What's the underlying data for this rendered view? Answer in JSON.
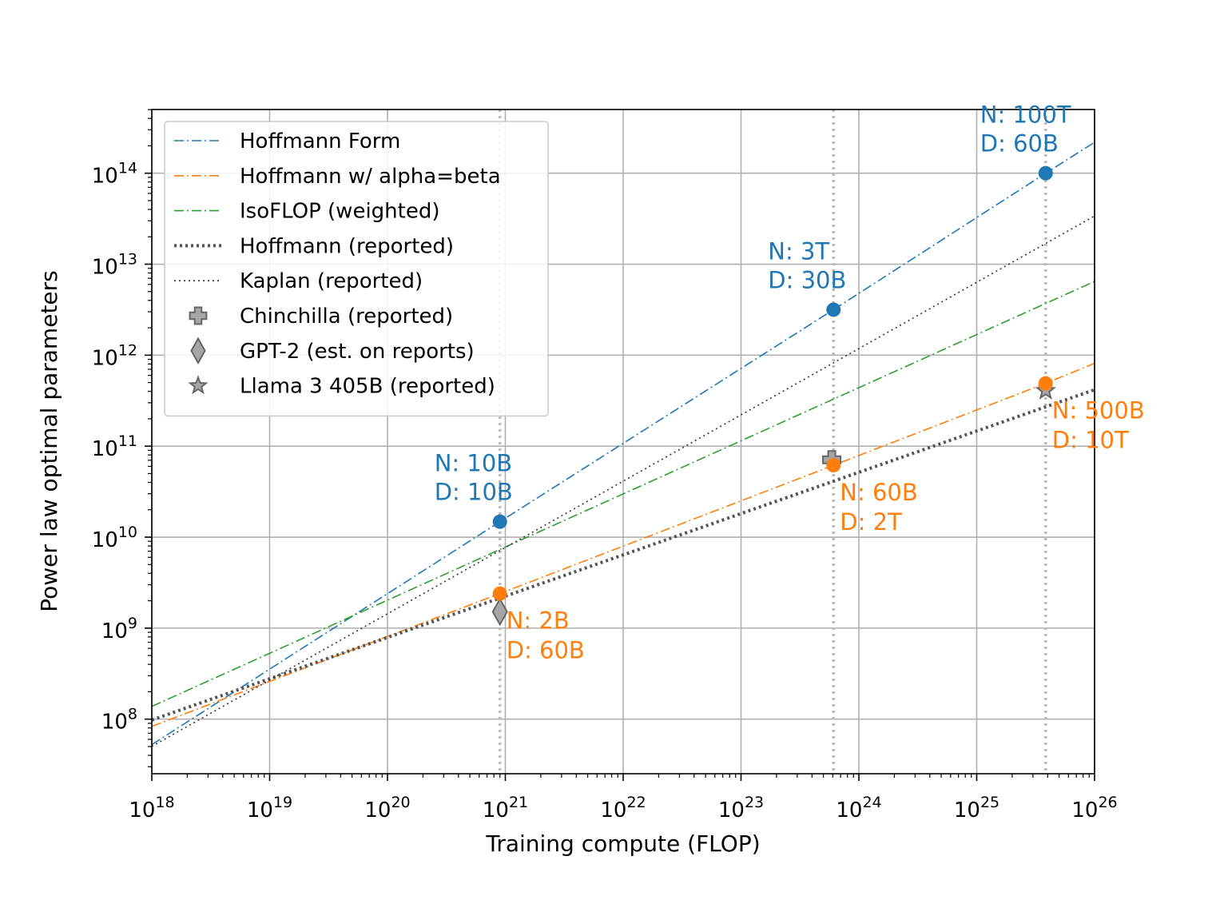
{
  "chart_data": {
    "type": "line",
    "xlabel": "Training compute (FLOP)",
    "ylabel": "Power law optimal parameters",
    "xscale": "log",
    "yscale": "log",
    "xlim_exp": [
      18,
      26
    ],
    "ylim_exp": [
      7.4,
      14.7
    ],
    "x_ticks": [
      {
        "base": "10",
        "exp": "18",
        "e": 18
      },
      {
        "base": "10",
        "exp": "19",
        "e": 19
      },
      {
        "base": "10",
        "exp": "20",
        "e": 20
      },
      {
        "base": "10",
        "exp": "21",
        "e": 21
      },
      {
        "base": "10",
        "exp": "22",
        "e": 22
      },
      {
        "base": "10",
        "exp": "23",
        "e": 23
      },
      {
        "base": "10",
        "exp": "24",
        "e": 24
      },
      {
        "base": "10",
        "exp": "25",
        "e": 25
      },
      {
        "base": "10",
        "exp": "26",
        "e": 26
      }
    ],
    "y_ticks": [
      {
        "base": "10",
        "exp": "8",
        "e": 8
      },
      {
        "base": "10",
        "exp": "9",
        "e": 9
      },
      {
        "base": "10",
        "exp": "10",
        "e": 10
      },
      {
        "base": "10",
        "exp": "11",
        "e": 11
      },
      {
        "base": "10",
        "exp": "12",
        "e": 12
      },
      {
        "base": "10",
        "exp": "13",
        "e": 13
      },
      {
        "base": "10",
        "exp": "14",
        "e": 14
      }
    ],
    "grid": true,
    "legend_position": "top-left",
    "vlines_log_x": [
      20.954,
      23.785,
      25.585
    ],
    "series": [
      {
        "name": "Hoffmann Form",
        "color": "#1f77b4",
        "style": "dashdot",
        "width": 1.6,
        "points_log": [
          [
            18,
            7.72
          ],
          [
            20.954,
            10.17
          ],
          [
            23.785,
            12.5
          ],
          [
            25.585,
            14.0
          ],
          [
            26,
            14.34
          ]
        ]
      },
      {
        "name": "Hoffmann w/ alpha=beta",
        "color": "#ff7f0e",
        "style": "dashdot",
        "width": 1.6,
        "points_log": [
          [
            18,
            7.92
          ],
          [
            20.954,
            9.38
          ],
          [
            23.785,
            10.79
          ],
          [
            25.585,
            11.69
          ],
          [
            26,
            11.91
          ]
        ]
      },
      {
        "name": "IsoFLOP (weighted)",
        "color": "#2ca02c",
        "style": "dashdot",
        "width": 1.6,
        "points_log": [
          [
            18,
            8.14
          ],
          [
            26,
            12.81
          ]
        ]
      },
      {
        "name": "Hoffmann (reported)",
        "color": "#555555",
        "style": "dotted-thick",
        "width": 4,
        "points_log": [
          [
            18,
            7.99
          ],
          [
            26,
            11.62
          ]
        ]
      },
      {
        "name": "Kaplan (reported)",
        "color": "#333333",
        "style": "dotted",
        "width": 1.6,
        "points_log": [
          [
            18,
            7.7
          ],
          [
            26,
            13.53
          ]
        ]
      }
    ],
    "markers": [
      {
        "name": "Chinchilla (reported)",
        "shape": "plus",
        "log_x": 23.77,
        "log_y": 10.85
      },
      {
        "name": "GPT-2 (est. on reports)",
        "shape": "diamond",
        "log_x": 20.954,
        "log_y": 9.18
      },
      {
        "name": "Llama 3 405B (reported)",
        "shape": "star",
        "log_x": 25.585,
        "log_y": 11.61
      }
    ],
    "points": [
      {
        "series": "Hoffmann Form",
        "color": "#1f77b4",
        "log_x": 20.954,
        "log_y": 10.17,
        "label_n": "N: 10B",
        "label_d": "D: 10B",
        "anchor": "above-left"
      },
      {
        "series": "Hoffmann Form",
        "color": "#1f77b4",
        "log_x": 23.785,
        "log_y": 12.5,
        "label_n": "N: 3T",
        "label_d": "D: 30B",
        "anchor": "above-left"
      },
      {
        "series": "Hoffmann Form",
        "color": "#1f77b4",
        "log_x": 25.585,
        "log_y": 14.0,
        "label_n": "N: 100T",
        "label_d": "D: 60B",
        "anchor": "above-left"
      },
      {
        "series": "Hoffmann w/ alpha=beta",
        "color": "#ff7f0e",
        "log_x": 20.954,
        "log_y": 9.38,
        "label_n": "N: 2B",
        "label_d": "D: 60B",
        "anchor": "below-right"
      },
      {
        "series": "Hoffmann w/ alpha=beta",
        "color": "#ff7f0e",
        "log_x": 23.785,
        "log_y": 10.79,
        "label_n": "N: 60B",
        "label_d": "D: 2T",
        "anchor": "below-right"
      },
      {
        "series": "Hoffmann w/ alpha=beta",
        "color": "#ff7f0e",
        "log_x": 25.585,
        "log_y": 11.69,
        "label_n": "N: 500B",
        "label_d": "D: 10T",
        "anchor": "below-right"
      }
    ],
    "legend": [
      {
        "label": "Hoffmann Form",
        "kind": "line",
        "color": "#1f77b4",
        "style": "dashdot"
      },
      {
        "label": "Hoffmann w/ alpha=beta",
        "kind": "line",
        "color": "#ff7f0e",
        "style": "dashdot"
      },
      {
        "label": "IsoFLOP (weighted)",
        "kind": "line",
        "color": "#2ca02c",
        "style": "dashdot"
      },
      {
        "label": "Hoffmann (reported)",
        "kind": "line",
        "color": "#555555",
        "style": "dotted-thick"
      },
      {
        "label": "Kaplan (reported)",
        "kind": "line",
        "color": "#333333",
        "style": "dotted"
      },
      {
        "label": "Chinchilla (reported)",
        "kind": "marker",
        "shape": "plus"
      },
      {
        "label": "GPT-2 (est. on reports)",
        "kind": "marker",
        "shape": "diamond"
      },
      {
        "label": "Llama 3 405B (reported)",
        "kind": "marker",
        "shape": "star"
      }
    ]
  }
}
